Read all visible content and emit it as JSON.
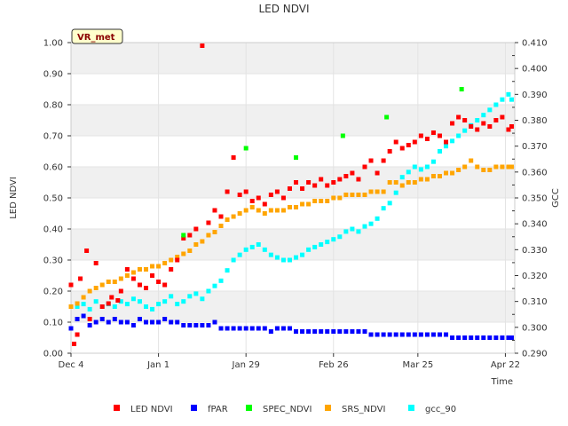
{
  "chart_data": {
    "type": "scatter",
    "title": "LED NDVI",
    "tag": "VR_met",
    "xlabel": "Time",
    "ylabel_left": "LED NDVI",
    "ylabel_right": "GCC",
    "x_ticks": [
      {
        "label": "Dec 4",
        "day": 0
      },
      {
        "label": "Jan 1",
        "day": 28
      },
      {
        "label": "Jan 29",
        "day": 56
      },
      {
        "label": "Feb 26",
        "day": 84
      },
      {
        "label": "Mar 25",
        "day": 111
      },
      {
        "label": "Apr 22",
        "day": 139
      }
    ],
    "xlim": [
      0,
      142
    ],
    "ylim_left": [
      0,
      1.0
    ],
    "y_ticks_left": [
      "0.00",
      "0.10",
      "0.20",
      "0.30",
      "0.40",
      "0.50",
      "0.60",
      "0.70",
      "0.80",
      "0.90",
      "1.00"
    ],
    "ylim_right": [
      0.29,
      0.41
    ],
    "y_ticks_right": [
      "0.290",
      "0.300",
      "0.310",
      "0.320",
      "0.330",
      "0.340",
      "0.350",
      "0.360",
      "0.370",
      "0.380",
      "0.390",
      "0.400",
      "0.410"
    ],
    "legend": [
      {
        "name": "LED NDVI",
        "color": "#ff0000"
      },
      {
        "name": "fPAR",
        "color": "#0000ff"
      },
      {
        "name": "SPEC_NDVI",
        "color": "#00ff00"
      },
      {
        "name": "SRS_NDVI",
        "color": "#ffa500"
      },
      {
        "name": "gcc_90",
        "color": "#00ffff"
      }
    ],
    "series": [
      {
        "name": "LED NDVI",
        "color": "#ff0000",
        "axis": "left",
        "x": [
          0,
          1,
          2,
          3,
          5,
          6,
          8,
          10,
          12,
          13,
          15,
          16,
          18,
          20,
          22,
          24,
          26,
          28,
          30,
          32,
          34,
          36,
          38,
          40,
          42,
          44,
          46,
          48,
          50,
          52,
          54,
          56,
          58,
          60,
          62,
          64,
          66,
          68,
          70,
          72,
          74,
          76,
          78,
          80,
          82,
          84,
          86,
          88,
          90,
          92,
          94,
          96,
          98,
          100,
          102,
          104,
          106,
          108,
          110,
          112,
          114,
          116,
          118,
          120,
          122,
          124,
          126,
          128,
          130,
          132,
          134,
          136,
          138,
          140,
          141
        ],
        "y": [
          0.22,
          0.03,
          0.06,
          0.24,
          0.33,
          0.11,
          0.29,
          0.15,
          0.16,
          0.18,
          0.17,
          0.2,
          0.27,
          0.24,
          0.22,
          0.21,
          0.25,
          0.23,
          0.22,
          0.27,
          0.3,
          0.37,
          0.38,
          0.4,
          0.99,
          0.42,
          0.46,
          0.44,
          0.52,
          0.63,
          0.51,
          0.52,
          0.49,
          0.5,
          0.48,
          0.51,
          0.52,
          0.5,
          0.53,
          0.55,
          0.53,
          0.55,
          0.54,
          0.56,
          0.54,
          0.55,
          0.56,
          0.57,
          0.58,
          0.56,
          0.6,
          0.62,
          0.58,
          0.62,
          0.65,
          0.68,
          0.66,
          0.67,
          0.68,
          0.7,
          0.69,
          0.71,
          0.7,
          0.68,
          0.74,
          0.76,
          0.75,
          0.73,
          0.72,
          0.74,
          0.73,
          0.75,
          0.76,
          0.72,
          0.73
        ]
      },
      {
        "name": "fPAR",
        "color": "#0000ff",
        "axis": "left",
        "x": [
          0,
          2,
          4,
          6,
          8,
          10,
          12,
          14,
          16,
          18,
          20,
          22,
          24,
          26,
          28,
          30,
          32,
          34,
          36,
          38,
          40,
          42,
          44,
          46,
          48,
          50,
          52,
          54,
          56,
          58,
          60,
          62,
          64,
          66,
          68,
          70,
          72,
          74,
          76,
          78,
          80,
          82,
          84,
          86,
          88,
          90,
          92,
          94,
          96,
          98,
          100,
          102,
          104,
          106,
          108,
          110,
          112,
          114,
          116,
          118,
          120,
          122,
          124,
          126,
          128,
          130,
          132,
          134,
          136,
          138,
          140,
          141
        ],
        "y": [
          0.08,
          0.11,
          0.12,
          0.09,
          0.1,
          0.11,
          0.1,
          0.11,
          0.1,
          0.1,
          0.09,
          0.11,
          0.1,
          0.1,
          0.1,
          0.11,
          0.1,
          0.1,
          0.09,
          0.09,
          0.09,
          0.09,
          0.09,
          0.1,
          0.08,
          0.08,
          0.08,
          0.08,
          0.08,
          0.08,
          0.08,
          0.08,
          0.07,
          0.08,
          0.08,
          0.08,
          0.07,
          0.07,
          0.07,
          0.07,
          0.07,
          0.07,
          0.07,
          0.07,
          0.07,
          0.07,
          0.07,
          0.07,
          0.06,
          0.06,
          0.06,
          0.06,
          0.06,
          0.06,
          0.06,
          0.06,
          0.06,
          0.06,
          0.06,
          0.06,
          0.06,
          0.05,
          0.05,
          0.05,
          0.05,
          0.05,
          0.05,
          0.05,
          0.05,
          0.05,
          0.05,
          0.05
        ]
      },
      {
        "name": "SPEC_NDVI",
        "color": "#00ff00",
        "axis": "left",
        "x": [
          36,
          56,
          72,
          87,
          101,
          125
        ],
        "y": [
          0.38,
          0.66,
          0.63,
          0.7,
          0.76,
          0.85
        ]
      },
      {
        "name": "SRS_NDVI",
        "color": "#ffa500",
        "axis": "left",
        "x": [
          0,
          2,
          4,
          6,
          8,
          10,
          12,
          14,
          16,
          18,
          20,
          22,
          24,
          26,
          28,
          30,
          32,
          34,
          36,
          38,
          40,
          42,
          44,
          46,
          48,
          50,
          52,
          54,
          56,
          58,
          60,
          62,
          64,
          66,
          68,
          70,
          72,
          74,
          76,
          78,
          80,
          82,
          84,
          86,
          88,
          90,
          92,
          94,
          96,
          98,
          100,
          102,
          104,
          106,
          108,
          110,
          112,
          114,
          116,
          118,
          120,
          122,
          124,
          126,
          128,
          130,
          132,
          134,
          136,
          138,
          140,
          141
        ],
        "y": [
          0.15,
          0.16,
          0.18,
          0.2,
          0.21,
          0.22,
          0.23,
          0.23,
          0.24,
          0.25,
          0.26,
          0.27,
          0.27,
          0.28,
          0.28,
          0.29,
          0.3,
          0.31,
          0.32,
          0.33,
          0.35,
          0.36,
          0.38,
          0.39,
          0.41,
          0.43,
          0.44,
          0.45,
          0.46,
          0.47,
          0.46,
          0.45,
          0.46,
          0.46,
          0.46,
          0.47,
          0.47,
          0.48,
          0.48,
          0.49,
          0.49,
          0.49,
          0.5,
          0.5,
          0.51,
          0.51,
          0.51,
          0.51,
          0.52,
          0.52,
          0.52,
          0.55,
          0.55,
          0.54,
          0.55,
          0.55,
          0.56,
          0.56,
          0.57,
          0.57,
          0.58,
          0.58,
          0.59,
          0.6,
          0.62,
          0.6,
          0.59,
          0.59,
          0.6,
          0.6,
          0.6,
          0.6
        ]
      },
      {
        "name": "gcc_90",
        "color": "#00ffff",
        "axis": "right",
        "x": [
          2,
          4,
          6,
          8,
          10,
          12,
          14,
          16,
          18,
          20,
          22,
          24,
          26,
          28,
          30,
          32,
          34,
          36,
          38,
          40,
          42,
          44,
          46,
          48,
          50,
          52,
          54,
          56,
          58,
          60,
          62,
          64,
          66,
          68,
          70,
          72,
          74,
          76,
          78,
          80,
          82,
          84,
          86,
          88,
          90,
          92,
          94,
          96,
          98,
          100,
          102,
          104,
          106,
          108,
          110,
          112,
          114,
          116,
          118,
          120,
          122,
          124,
          126,
          128,
          130,
          132,
          134,
          136,
          138,
          140,
          141
        ],
        "y": [
          0.308,
          0.309,
          0.307,
          0.31,
          0.308,
          0.309,
          0.308,
          0.31,
          0.309,
          0.311,
          0.31,
          0.308,
          0.307,
          0.309,
          0.31,
          0.312,
          0.309,
          0.31,
          0.312,
          0.313,
          0.311,
          0.314,
          0.316,
          0.318,
          0.322,
          0.326,
          0.328,
          0.33,
          0.331,
          0.332,
          0.33,
          0.328,
          0.327,
          0.326,
          0.326,
          0.327,
          0.328,
          0.33,
          0.331,
          0.332,
          0.333,
          0.334,
          0.335,
          0.337,
          0.338,
          0.337,
          0.339,
          0.34,
          0.342,
          0.346,
          0.348,
          0.352,
          0.358,
          0.36,
          0.362,
          0.361,
          0.362,
          0.364,
          0.368,
          0.37,
          0.372,
          0.374,
          0.376,
          0.378,
          0.38,
          0.382,
          0.384,
          0.386,
          0.388,
          0.39,
          0.388
        ]
      }
    ]
  }
}
